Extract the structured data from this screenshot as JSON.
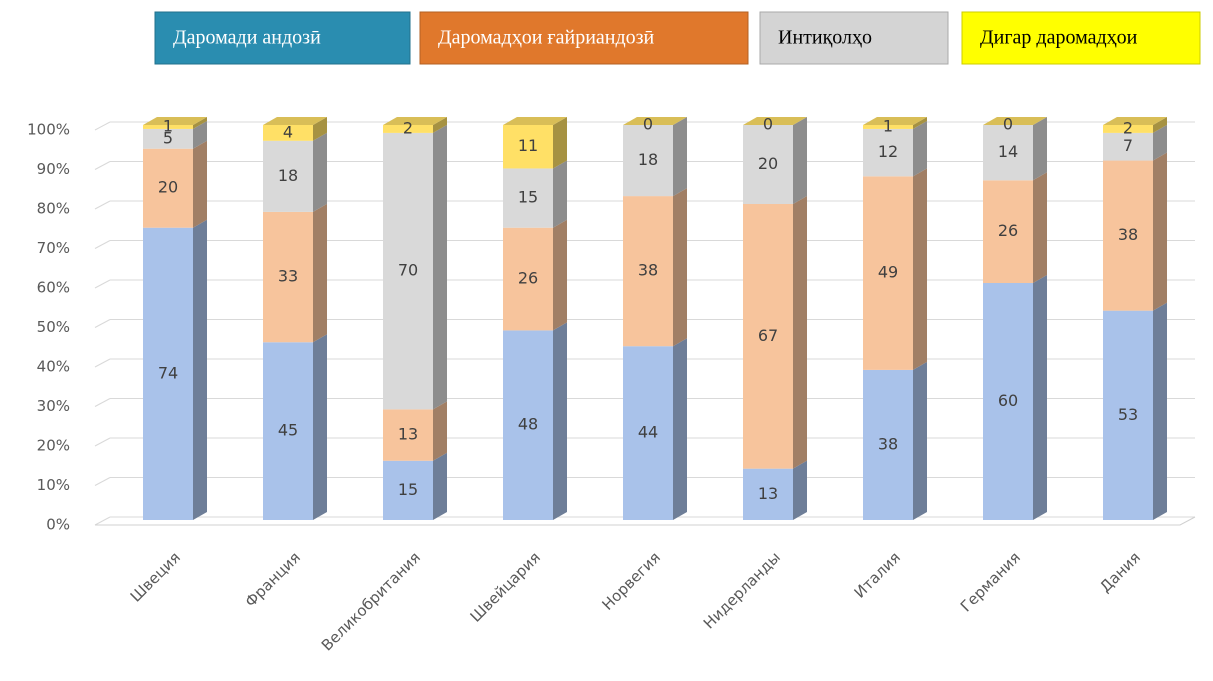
{
  "chart_data": {
    "type": "bar3d_stacked",
    "categories": [
      "Швеция",
      "Франция",
      "Великобритания",
      "Швейцария",
      "Норвегия",
      "Нидерланды",
      "Италия",
      "Германия",
      "Дания"
    ],
    "series": [
      {
        "name": "Даромади андозӣ",
        "color": "#a9c2ea",
        "legend_color": "#2a8db0",
        "values": [
          74,
          45,
          15,
          48,
          44,
          13,
          38,
          60,
          53
        ]
      },
      {
        "name": "Даромадҳои ғайриандозӣ",
        "color": "#f7c49c",
        "legend_color": "#e0782c",
        "values": [
          20,
          33,
          13,
          26,
          38,
          67,
          49,
          26,
          38
        ]
      },
      {
        "name": "Интиқолҳо",
        "color": "#d9d9d9",
        "legend_color": "#d4d4d4",
        "values": [
          5,
          18,
          70,
          15,
          18,
          20,
          12,
          14,
          7
        ]
      },
      {
        "name": "Дигар даромадҳои",
        "color": "#ffe066",
        "legend_color": "#ffff00",
        "values": [
          1,
          4,
          2,
          11,
          0,
          0,
          1,
          0,
          2
        ]
      }
    ],
    "ylim": [
      0,
      100
    ],
    "yticks": [
      {
        "value": 0,
        "label": "0%"
      },
      {
        "value": 10,
        "label": "10%"
      },
      {
        "value": 20,
        "label": "20%"
      },
      {
        "value": 30,
        "label": "30%"
      },
      {
        "value": 40,
        "label": "40%"
      },
      {
        "value": 50,
        "label": "50%"
      },
      {
        "value": 60,
        "label": "60%"
      },
      {
        "value": 70,
        "label": "70%"
      },
      {
        "value": 80,
        "label": "80%"
      },
      {
        "value": 90,
        "label": "90%"
      },
      {
        "value": 100,
        "label": "100%"
      }
    ],
    "grid": true
  }
}
